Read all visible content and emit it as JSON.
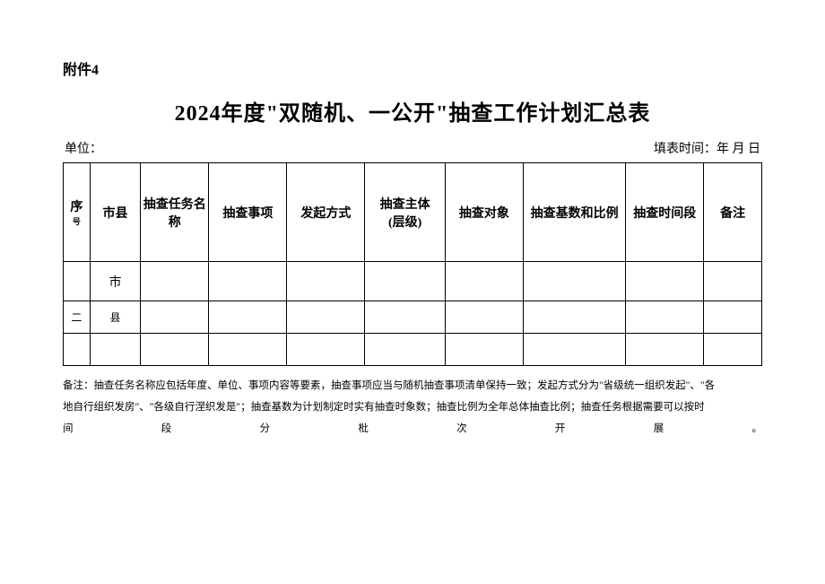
{
  "attachment_label": "附件4",
  "title": "2024年度\"双随机、一公开\"抽查工作计划汇总表",
  "unit_label": "单位：",
  "fill_time_label": "填表时间：年 月 日",
  "table": {
    "headers": {
      "seq": "序",
      "seq_sub": "号",
      "city_county": "市县",
      "task_name": "抽查任务名称",
      "check_item": "抽查事项",
      "initiate_mode": "发起方式",
      "subject_level": "抽查主体\n(层级)",
      "check_object": "抽查对象",
      "base_ratio": "抽查基数和比例",
      "time_period": "抽查时间段",
      "remark": "备注"
    },
    "rows": [
      {
        "seq": "",
        "city_county": "市",
        "cells": [
          "",
          "",
          "",
          "",
          "",
          "",
          "",
          ""
        ]
      },
      {
        "seq": "二",
        "city_county": "县",
        "cells": [
          "",
          "",
          "",
          "",
          "",
          "",
          "",
          ""
        ]
      },
      {
        "seq": "",
        "city_county": "",
        "cells": [
          "",
          "",
          "",
          "",
          "",
          "",
          "",
          ""
        ]
      }
    ]
  },
  "footnote": {
    "prefix": "备注：",
    "line1": "抽查任务名称应包括年度、单位、事项内容等要素，抽查事项应当与随机抽查事项清单保持一致；发起方式分为\"省级统一组织发起\"、\"各",
    "line2": "地自行组织发房\"、\"各级自行涅织发是\"；抽查基数为计划制定时实有抽查时象数；抽查比例为全年总体抽查比例；抽查任务根据需要可以按时",
    "line3_chars": [
      "间",
      "段",
      "分",
      "枇",
      "次",
      "开",
      "展",
      "。"
    ]
  },
  "colors": {
    "background": "#ffffff",
    "text": "#000000",
    "border": "#000000"
  },
  "typography": {
    "title_fontsize": 24,
    "body_fontsize": 14,
    "footnote_fontsize": 11.5,
    "font_family": "SimSun"
  }
}
